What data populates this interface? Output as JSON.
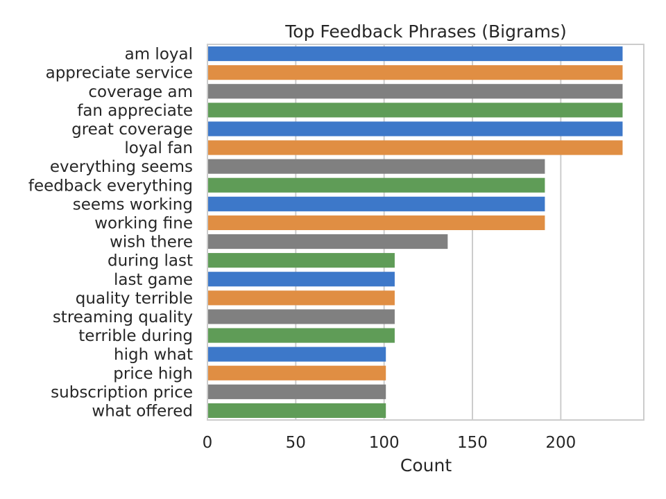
{
  "chart_data": {
    "type": "bar",
    "orientation": "horizontal",
    "title": "Top Feedback Phrases (Bigrams)",
    "xlabel": "Count",
    "ylabel": "",
    "xlim": [
      0,
      247
    ],
    "xticks": [
      0,
      50,
      100,
      150,
      200
    ],
    "grid": true,
    "categories": [
      "am loyal",
      "appreciate service",
      "coverage am",
      "fan appreciate",
      "great coverage",
      "loyal fan",
      "everything seems",
      "feedback everything",
      "seems working",
      "working fine",
      "wish there",
      "during last",
      "last game",
      "quality terrible",
      "streaming quality",
      "terrible during",
      "high what",
      "price high",
      "subscription price",
      "what offered"
    ],
    "values": [
      235,
      235,
      235,
      235,
      235,
      235,
      191,
      191,
      191,
      191,
      136,
      106,
      106,
      106,
      106,
      106,
      101,
      101,
      101,
      101
    ],
    "colors": [
      "#3d78c9",
      "#e08e43",
      "#808080",
      "#5f9c57"
    ]
  }
}
